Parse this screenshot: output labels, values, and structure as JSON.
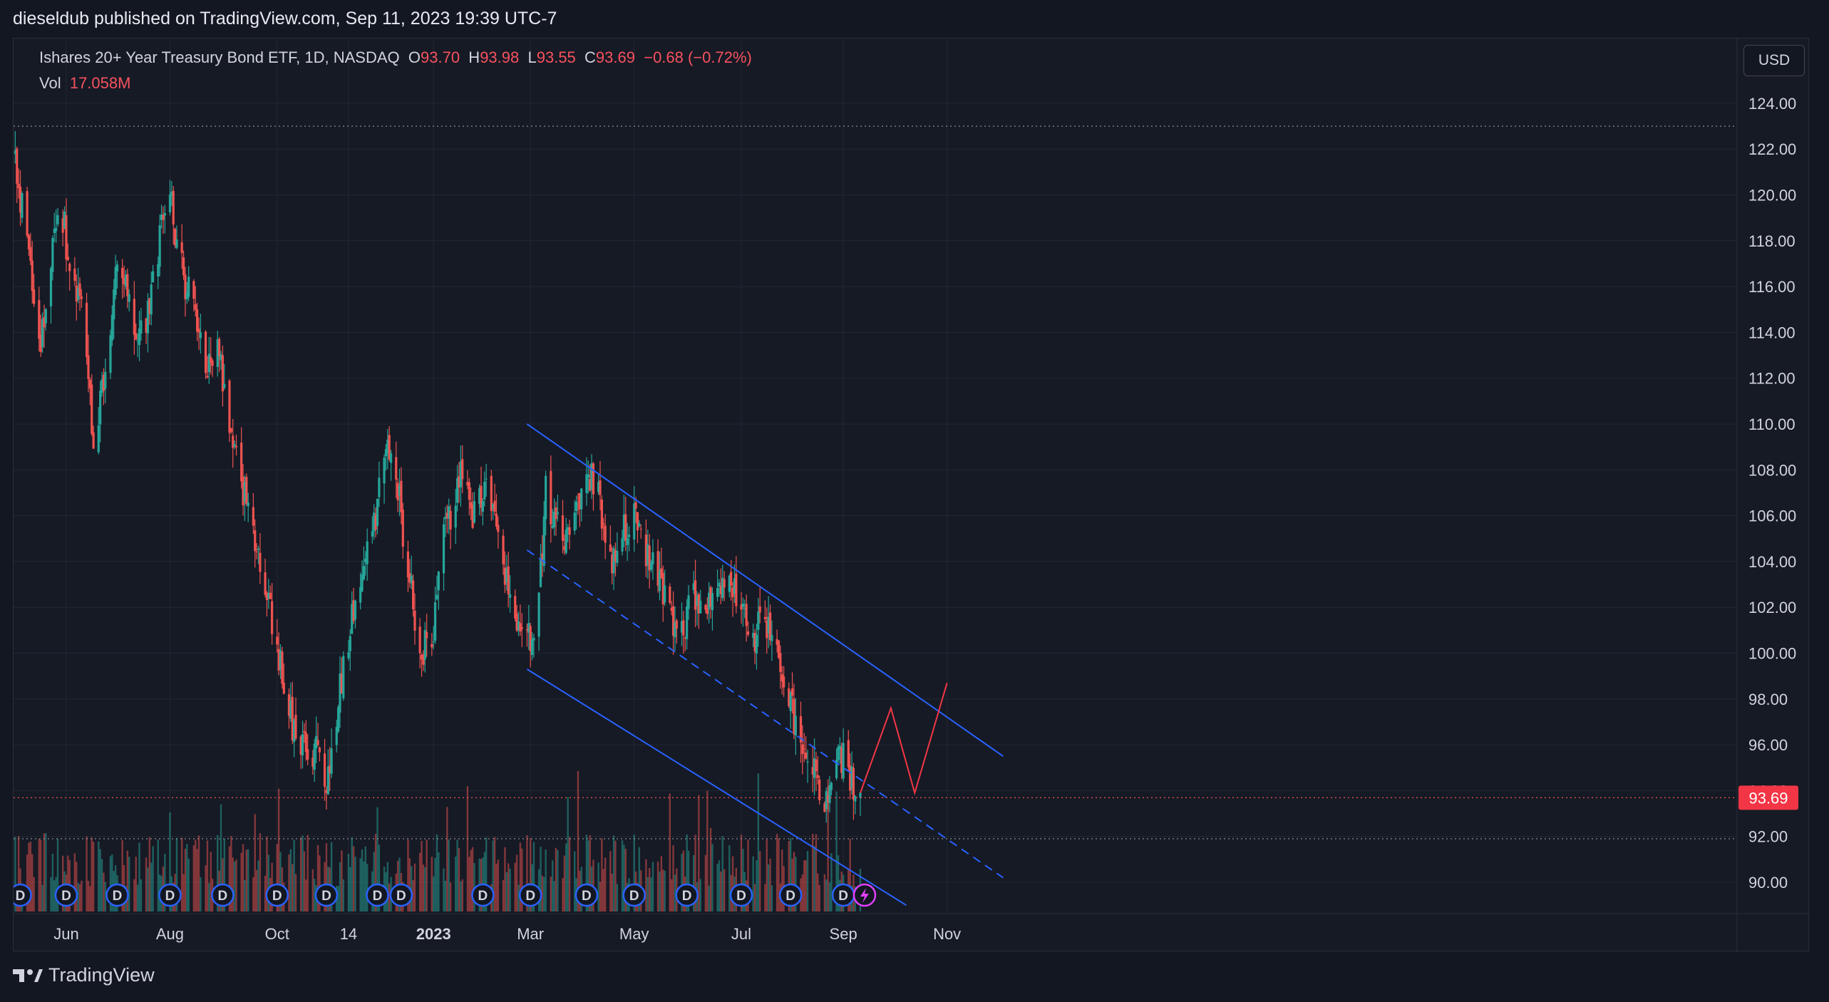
{
  "header": {
    "published_by": "dieseldub published on TradingView.com, Sep 11, 2023 19:39 UTC-7"
  },
  "legend": {
    "symbol": "Ishares 20+ Year Treasury Bond ETF, 1D, NASDAQ",
    "o_label": "O",
    "o_value": "93.70",
    "h_label": "H",
    "h_value": "93.98",
    "l_label": "L",
    "l_value": "93.55",
    "c_label": "C",
    "c_value": "93.69",
    "change": "−0.68 (−0.72%)",
    "vol_label": "Vol",
    "vol_value": "17.058M"
  },
  "currency_button": "USD",
  "footer": {
    "brand": "TradingView"
  },
  "colors": {
    "up": "#26a69a",
    "down": "#ef5350",
    "channel": "#2962ff",
    "projection": "#f23645",
    "last_price_bg": "#f23645",
    "dividend": "#2962ff"
  },
  "icons": {
    "dividend": "circle-d-icon",
    "event": "lightning-icon",
    "logo": "tradingview-logo-icon"
  },
  "chart_data": {
    "type": "candlestick",
    "interval": "1D",
    "date_range": [
      "2022-05-01",
      "2023-09-11"
    ],
    "y_axis": {
      "side": "right",
      "range": [
        89.0,
        125.0
      ],
      "ticks": [
        "124.00",
        "122.00",
        "120.00",
        "118.00",
        "116.00",
        "114.00",
        "112.00",
        "110.00",
        "108.00",
        "106.00",
        "104.00",
        "102.00",
        "100.00",
        "98.00",
        "96.00",
        "94.00",
        "92.00",
        "90.00"
      ]
    },
    "x_axis": {
      "ticks": [
        {
          "label": "Jun",
          "date": "2022-06-01"
        },
        {
          "label": "Aug",
          "date": "2022-08-01"
        },
        {
          "label": "Oct",
          "date": "2022-10-03"
        },
        {
          "label": "14",
          "date": "2022-11-14"
        },
        {
          "label": "2023",
          "date": "2023-01-03"
        },
        {
          "label": "Mar",
          "date": "2023-03-01"
        },
        {
          "label": "May",
          "date": "2023-05-01"
        },
        {
          "label": "Jul",
          "date": "2023-07-03"
        },
        {
          "label": "Sep",
          "date": "2023-09-01"
        },
        {
          "label": "Nov",
          "date": "2023-11-01"
        }
      ]
    },
    "grid": true,
    "price_path": [
      [
        "2022-05-01",
        122.0
      ],
      [
        "2022-05-06",
        119.5
      ],
      [
        "2022-05-12",
        116.0
      ],
      [
        "2022-05-17",
        113.2
      ],
      [
        "2022-05-23",
        117.5
      ],
      [
        "2022-05-29",
        119.8
      ],
      [
        "2022-06-03",
        116.5
      ],
      [
        "2022-06-09",
        115.5
      ],
      [
        "2022-06-14",
        112.0
      ],
      [
        "2022-06-17",
        108.5
      ],
      [
        "2022-06-22",
        111.5
      ],
      [
        "2022-06-27",
        114.0
      ],
      [
        "2022-07-01",
        117.0
      ],
      [
        "2022-07-06",
        116.5
      ],
      [
        "2022-07-12",
        113.0
      ],
      [
        "2022-07-18",
        114.5
      ],
      [
        "2022-07-26",
        118.0
      ],
      [
        "2022-08-01",
        120.5
      ],
      [
        "2022-08-04",
        118.5
      ],
      [
        "2022-08-10",
        116.0
      ],
      [
        "2022-08-16",
        115.0
      ],
      [
        "2022-08-22",
        112.5
      ],
      [
        "2022-08-29",
        113.5
      ],
      [
        "2022-09-03",
        110.5
      ],
      [
        "2022-09-07",
        109.5
      ],
      [
        "2022-09-13",
        107.0
      ],
      [
        "2022-09-20",
        105.0
      ],
      [
        "2022-09-25",
        103.5
      ],
      [
        "2022-09-30",
        101.5
      ],
      [
        "2022-10-07",
        98.5
      ],
      [
        "2022-10-13",
        96.5
      ],
      [
        "2022-10-18",
        96.0
      ],
      [
        "2022-10-22",
        95.0
      ],
      [
        "2022-10-27",
        96.5
      ],
      [
        "2022-11-01",
        94.0
      ],
      [
        "2022-11-04",
        95.5
      ],
      [
        "2022-11-10",
        99.0
      ],
      [
        "2022-11-17",
        102.0
      ],
      [
        "2022-11-24",
        104.0
      ],
      [
        "2022-12-01",
        106.5
      ],
      [
        "2022-12-06",
        109.0
      ],
      [
        "2022-12-12",
        108.0
      ],
      [
        "2022-12-18",
        104.0
      ],
      [
        "2022-12-27",
        100.0
      ],
      [
        "2023-01-03",
        101.0
      ],
      [
        "2023-01-09",
        105.0
      ],
      [
        "2023-01-15",
        106.5
      ],
      [
        "2023-01-19",
        108.0
      ],
      [
        "2023-01-25",
        106.0
      ],
      [
        "2023-02-02",
        107.5
      ],
      [
        "2023-02-08",
        105.5
      ],
      [
        "2023-02-14",
        103.5
      ],
      [
        "2023-02-20",
        101.5
      ],
      [
        "2023-02-25",
        100.5
      ],
      [
        "2023-03-03",
        101.0
      ],
      [
        "2023-03-06",
        102.5
      ],
      [
        "2023-03-10",
        107.0
      ],
      [
        "2023-03-14",
        106.0
      ],
      [
        "2023-03-21",
        104.5
      ],
      [
        "2023-03-28",
        106.5
      ],
      [
        "2023-04-04",
        108.0
      ],
      [
        "2023-04-11",
        106.5
      ],
      [
        "2023-04-18",
        104.0
      ],
      [
        "2023-04-25",
        105.5
      ],
      [
        "2023-05-03",
        106.0
      ],
      [
        "2023-05-08",
        104.5
      ],
      [
        "2023-05-15",
        103.5
      ],
      [
        "2023-05-22",
        101.5
      ],
      [
        "2023-05-30",
        101.0
      ],
      [
        "2023-06-05",
        102.5
      ],
      [
        "2023-06-12",
        102.0
      ],
      [
        "2023-06-19",
        102.5
      ],
      [
        "2023-06-26",
        103.5
      ],
      [
        "2023-07-03",
        102.0
      ],
      [
        "2023-07-08",
        100.0
      ],
      [
        "2023-07-12",
        101.0
      ],
      [
        "2023-07-17",
        101.5
      ],
      [
        "2023-07-21",
        100.5
      ],
      [
        "2023-07-27",
        99.5
      ],
      [
        "2023-08-01",
        98.0
      ],
      [
        "2023-08-05",
        96.0
      ],
      [
        "2023-08-10",
        95.5
      ],
      [
        "2023-08-16",
        94.5
      ],
      [
        "2023-08-21",
        93.0
      ],
      [
        "2023-08-25",
        94.5
      ],
      [
        "2023-08-31",
        95.5
      ],
      [
        "2023-09-05",
        94.5
      ],
      [
        "2023-09-11",
        93.69
      ]
    ],
    "last_price": "93.69",
    "reference_lines": [
      123.0,
      93.69,
      91.9
    ],
    "drawings": {
      "channel_upper": [
        [
          "2023-02-27",
          110.0
        ],
        [
          "2023-12-04",
          95.5
        ]
      ],
      "channel_mid_dashed": [
        [
          "2023-02-27",
          104.5
        ],
        [
          "2023-12-04",
          90.2
        ]
      ],
      "channel_lower": [
        [
          "2023-02-27",
          99.3
        ],
        [
          "2023-10-08",
          89.0
        ]
      ],
      "projection": [
        [
          "2023-09-11",
          93.9
        ],
        [
          "2023-09-29",
          97.6
        ],
        [
          "2023-10-13",
          93.9
        ],
        [
          "2023-11-01",
          98.7
        ]
      ]
    },
    "dividend_markers": [
      "2022-05-05",
      "2022-06-01",
      "2022-07-01",
      "2022-08-01",
      "2022-09-01",
      "2022-10-03",
      "2022-11-01",
      "2022-12-01",
      "2022-12-15",
      "2023-02-01",
      "2023-03-01",
      "2023-04-03",
      "2023-05-01",
      "2023-06-01",
      "2023-07-03",
      "2023-08-01",
      "2023-09-01"
    ],
    "dividend_label": "D",
    "event_marker": "2023-09-11"
  }
}
